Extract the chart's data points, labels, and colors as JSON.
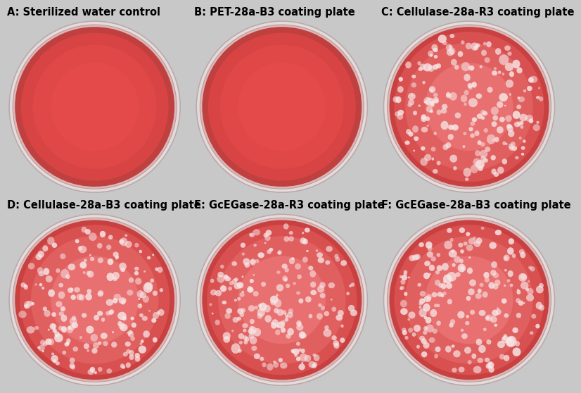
{
  "background_color": "#c8c8c8",
  "panels": [
    {
      "label": "A: Sterilized water control",
      "has_colonies": false
    },
    {
      "label": "B: PET-28a-B3 coating plate",
      "has_colonies": false
    },
    {
      "label": "C: Cellulase-28a-R3 coating plate",
      "has_colonies": true
    },
    {
      "label": "D: Cellulase-28a-B3 coating plate",
      "has_colonies": true
    },
    {
      "label": "E: GcEGase-28a-R3 coating plate",
      "has_colonies": true
    },
    {
      "label": "F: GcEGase-28a-B3 coating plate",
      "has_colonies": true
    }
  ],
  "plate_rim_outer_color": "#e8e0e0",
  "plate_rim_inner_color": "#ddb8b8",
  "plate_agar_solid_color": "#e04848",
  "plate_agar_colony_color": "#e06060",
  "plate_edge_dark": "#c04040",
  "plate_edge_lighter": "#d85050",
  "colony_fill": "#f8e8e8",
  "colony_edge": "none",
  "colony_alpha": 0.75,
  "n_colonies": 200,
  "colony_size_mean": 0.03,
  "colony_size_std": 0.01,
  "title_fontsize": 10.5,
  "title_fontweight": "bold"
}
